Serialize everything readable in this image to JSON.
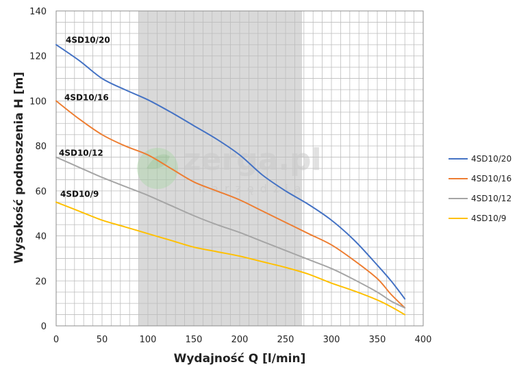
{
  "chart_data": {
    "type": "line",
    "xlabel": "Wydajność Q [l/min]",
    "ylabel": "Wysokość podnoszenia H [m]",
    "xlim": [
      0,
      400
    ],
    "ylim": [
      0,
      140
    ],
    "x_ticks": [
      "0",
      "50",
      "100",
      "150",
      "200",
      "250",
      "300",
      "350",
      "400"
    ],
    "y_ticks": [
      "0",
      "20",
      "40",
      "60",
      "80",
      "100",
      "120",
      "140"
    ],
    "grid": true,
    "shaded_region": [
      90,
      268
    ],
    "legend_position": "right",
    "watermark": {
      "main": "zerga.pl",
      "sub": "narzędzia"
    },
    "series": [
      {
        "name": "4SD10/20",
        "color": "#4472c4",
        "x": [
          0,
          25,
          50,
          75,
          100,
          125,
          150,
          175,
          200,
          225,
          250,
          275,
          300,
          325,
          350,
          365,
          380
        ],
        "y": [
          125,
          118,
          110,
          105,
          100.5,
          95,
          89,
          83,
          76,
          67,
          60,
          54,
          47,
          38,
          27,
          20,
          12
        ]
      },
      {
        "name": "4SD10/16",
        "color": "#ed7d31",
        "x": [
          0,
          25,
          50,
          75,
          100,
          125,
          150,
          175,
          200,
          225,
          250,
          275,
          300,
          325,
          350,
          365,
          380
        ],
        "y": [
          100,
          92,
          85,
          80,
          76,
          70,
          64,
          60,
          56,
          51,
          46,
          41,
          36,
          29,
          21,
          14,
          8
        ]
      },
      {
        "name": "4SD10/12",
        "color": "#a5a5a5",
        "x": [
          0,
          25,
          50,
          75,
          100,
          125,
          150,
          175,
          200,
          225,
          250,
          275,
          300,
          325,
          350,
          365,
          380
        ],
        "y": [
          75,
          70.5,
          66,
          62,
          58,
          53.5,
          49,
          45,
          41.5,
          37.5,
          33.5,
          29.5,
          25.5,
          20.5,
          15,
          11,
          8
        ]
      },
      {
        "name": "4SD10/9",
        "color": "#ffc000",
        "x": [
          0,
          25,
          50,
          75,
          100,
          125,
          150,
          175,
          200,
          225,
          250,
          275,
          300,
          325,
          350,
          365,
          380
        ],
        "y": [
          55,
          51,
          47,
          44,
          41,
          38,
          35,
          33,
          31,
          28.5,
          26,
          23,
          19,
          15.5,
          11.5,
          8.5,
          5
        ]
      }
    ]
  }
}
